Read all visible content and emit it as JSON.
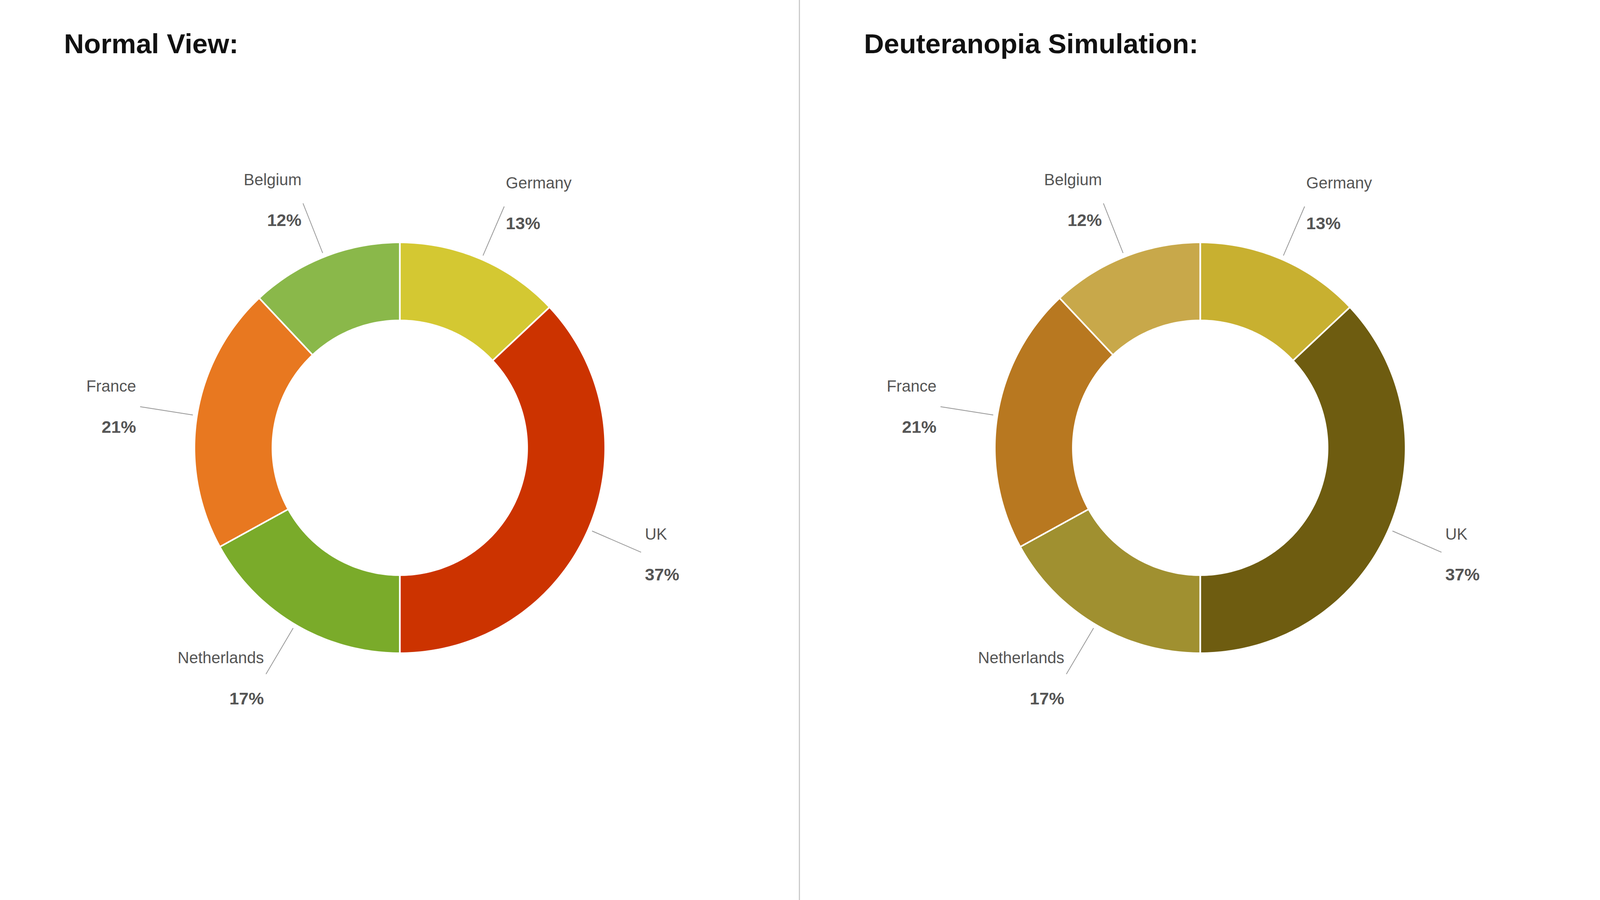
{
  "chart_data": [
    {
      "type": "donut",
      "title": "Normal View:",
      "categories": [
        "Germany",
        "UK",
        "Netherlands",
        "France",
        "Belgium"
      ],
      "values": [
        13,
        37,
        17,
        21,
        12
      ],
      "value_labels": [
        "13%",
        "37%",
        "17%",
        "21%",
        "12%"
      ],
      "colors": [
        "#d4c832",
        "#cc3300",
        "#7aab2a",
        "#e87820",
        "#8ab84a"
      ],
      "data_labels": true
    },
    {
      "type": "donut",
      "title": "Deuteranopia Simulation:",
      "categories": [
        "Germany",
        "UK",
        "Netherlands",
        "France",
        "Belgium"
      ],
      "values": [
        13,
        37,
        17,
        21,
        12
      ],
      "value_labels": [
        "13%",
        "37%",
        "17%",
        "21%",
        "12%"
      ],
      "colors": [
        "#c8b030",
        "#6e5c10",
        "#a09030",
        "#b87820",
        "#c8a84a"
      ],
      "data_labels": true
    }
  ]
}
